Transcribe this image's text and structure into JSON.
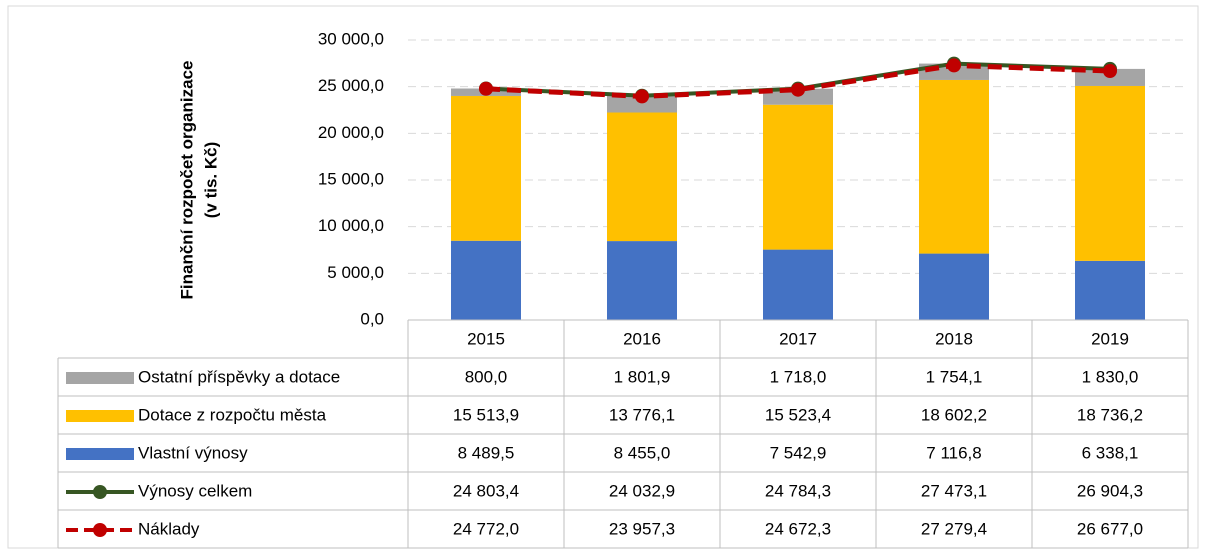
{
  "chart_data": {
    "type": "bar",
    "ylabel": [
      "Finanční rozpočet organizace",
      "(v tis. Kč)"
    ],
    "categories": [
      "2015",
      "2016",
      "2017",
      "2018",
      "2019"
    ],
    "stacked": true,
    "grid": true,
    "data_table": true,
    "ylim": [
      0,
      30000
    ],
    "yticks": [
      {
        "value": 0,
        "label": "0,0"
      },
      {
        "value": 5000,
        "label": "5 000,0"
      },
      {
        "value": 10000,
        "label": "10 000,0"
      },
      {
        "value": 15000,
        "label": "15 000,0"
      },
      {
        "value": 20000,
        "label": "20 000,0"
      },
      {
        "value": 25000,
        "label": "25 000,0"
      },
      {
        "value": 30000,
        "label": "30 000,0"
      }
    ],
    "series": [
      {
        "name": "Ostatní příspěvky a dotace",
        "type": "bar",
        "color": "#a5a5a5",
        "values": [
          800,
          1801.9,
          1718,
          1754.1,
          1830
        ],
        "value_labels": [
          "800,0",
          "1 801,9",
          "1 718,0",
          "1 754,1",
          "1 830,0"
        ]
      },
      {
        "name": "Dotace z rozpočtu města",
        "type": "bar",
        "color": "#ffc000",
        "values": [
          15513.9,
          13776.1,
          15523.4,
          18602.2,
          18736.2
        ],
        "value_labels": [
          "15 513,9",
          "13 776,1",
          "15 523,4",
          "18 602,2",
          "18 736,2"
        ]
      },
      {
        "name": "Vlastní výnosy",
        "type": "bar",
        "color": "#4472c4",
        "values": [
          8489.5,
          8455,
          7542.9,
          7116.8,
          6338.1
        ],
        "value_labels": [
          "8 489,5",
          "8 455,0",
          "7 542,9",
          "7 116,8",
          "6 338,1"
        ]
      },
      {
        "name": "Výnosy celkem",
        "type": "line",
        "color": "#375623",
        "values": [
          24803.4,
          24032.9,
          24784.3,
          27473.1,
          26904.3
        ],
        "value_labels": [
          "24 803,4",
          "24 032,9",
          "24 784,3",
          "27 473,1",
          "26 904,3"
        ]
      },
      {
        "name": "Náklady",
        "type": "line",
        "dashed": true,
        "color": "#c00000",
        "values": [
          24772,
          23957.3,
          24672.3,
          27279.4,
          26677
        ],
        "value_labels": [
          "24 772,0",
          "23 957,3",
          "24 672,3",
          "27 279,4",
          "26 677,0"
        ]
      }
    ]
  }
}
